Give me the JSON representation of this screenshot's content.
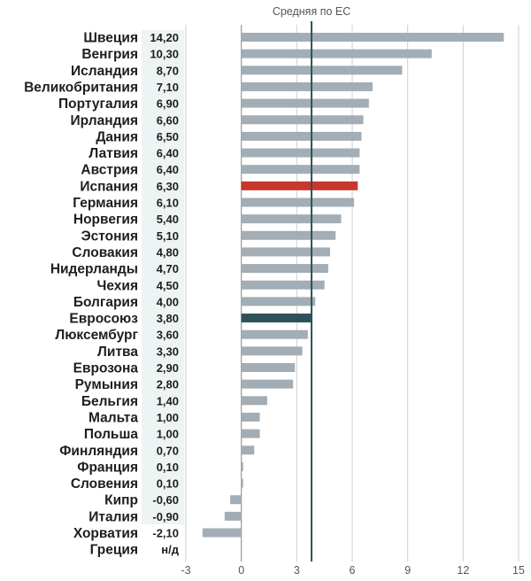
{
  "chart_data": {
    "type": "bar",
    "orientation": "horizontal",
    "categories": [
      "Швеция",
      "Венгрия",
      "Исландия",
      "Великобритания",
      "Португалия",
      "Ирландия",
      "Дания",
      "Латвия",
      "Австрия",
      "Испания",
      "Германия",
      "Норвегия",
      "Эстония",
      "Словакия",
      "Нидерланды",
      "Чехия",
      "Болгария",
      "Евросоюз",
      "Люксембург",
      "Литва",
      "Еврозона",
      "Румыния",
      "Бельгия",
      "Мальта",
      "Польша",
      "Финляндия",
      "Франция",
      "Словения",
      "Кипр",
      "Италия",
      "Хорватия",
      "Греция"
    ],
    "values": [
      14.2,
      10.3,
      8.7,
      7.1,
      6.9,
      6.6,
      6.5,
      6.4,
      6.4,
      6.3,
      6.1,
      5.4,
      5.1,
      4.8,
      4.7,
      4.5,
      4.0,
      3.8,
      3.6,
      3.3,
      2.9,
      2.8,
      1.4,
      1.0,
      1.0,
      0.7,
      0.1,
      0.1,
      -0.6,
      -0.9,
      -2.1,
      null
    ],
    "value_labels": [
      "14,20",
      "10,30",
      "8,70",
      "7,10",
      "6,90",
      "6,60",
      "6,50",
      "6,40",
      "6,40",
      "6,30",
      "6,10",
      "5,40",
      "5,10",
      "4,80",
      "4,70",
      "4,50",
      "4,00",
      "3,80",
      "3,60",
      "3,30",
      "2,90",
      "2,80",
      "1,40",
      "1,00",
      "1,00",
      "0,70",
      "0,10",
      "0,10",
      "-0,60",
      "-0,90",
      "-2,10",
      "н/д"
    ],
    "highlight": {
      "Испания": "#c8372d",
      "Евросоюз": "#2e5259"
    },
    "default_bar_color": "#a3adb5",
    "xlim": [
      -3,
      15
    ],
    "x_ticks": [
      -3,
      0,
      3,
      6,
      9,
      12,
      15
    ],
    "reference_line": {
      "value": 3.8,
      "label": "Средняя по ЕС",
      "color": "#2e5259"
    },
    "grid": true
  }
}
